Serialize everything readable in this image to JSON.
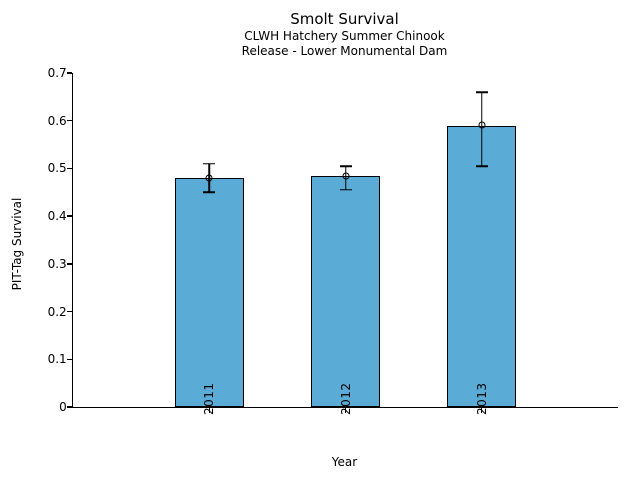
{
  "chart_data": {
    "type": "bar",
    "title": "Smolt Survival",
    "subtitle_line1": "CLWH Hatchery Summer Chinook",
    "subtitle_line2": "Release - Lower Monumental Dam",
    "xlabel": "Year",
    "ylabel": "PIT-Tag Survival",
    "categories": [
      "2011",
      "2012",
      "2013"
    ],
    "values": [
      0.48,
      0.485,
      0.59
    ],
    "error_low": [
      0.45,
      0.455,
      0.505
    ],
    "error_high": [
      0.51,
      0.505,
      0.66
    ],
    "ylim": [
      0,
      0.7
    ],
    "yticks": [
      0,
      0.1,
      0.2,
      0.3,
      0.4,
      0.5,
      0.6,
      0.7
    ],
    "ytick_labels": [
      "0",
      "0.1",
      "0.2",
      "0.3",
      "0.4",
      "0.5",
      "0.6",
      "0.7"
    ],
    "xtick_label_rotation_deg": 90,
    "bar_fill_color": "#5aabd6",
    "bar_edge_color": "#000000",
    "error_bar_color": "#000000",
    "marker": "open-circle",
    "grid": false,
    "legend": "none"
  }
}
